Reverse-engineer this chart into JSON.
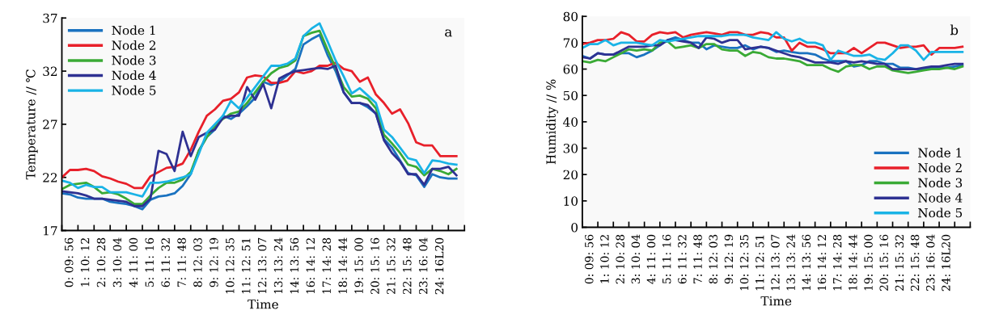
{
  "chart_data": [
    {
      "type": "line",
      "xlabel": "Time",
      "ylabel": "Temperature // ℃",
      "annotations": [
        "a"
      ],
      "legend": "top left",
      "ylim": [
        17,
        37
      ],
      "yticks": [
        17,
        22,
        27,
        32,
        37
      ],
      "categories": [
        null,
        "0: 09: 56",
        null,
        "1: 10: 12",
        null,
        "2: 10: 28",
        null,
        "3: 10: 04",
        null,
        "4: 11: 00",
        null,
        "5: 11: 16",
        null,
        "6: 11: 32",
        null,
        "7: 11: 48",
        null,
        "8: 12: 03",
        null,
        "9: 12: 19",
        null,
        "10: 12: 35",
        null,
        "11: 12: 51",
        null,
        "12: 13: 07",
        null,
        "13: 13: 24",
        null,
        "14: 13: 56",
        null,
        "16: 14: 12",
        null,
        "17: 14: 28",
        null,
        "18: 14: 44",
        null,
        "19: 15: 00",
        null,
        "20: 15: 16",
        null,
        "21: 15: 32",
        null,
        "22: 15: 48",
        null,
        "23: 16: 04",
        null,
        "24: 16L20",
        null,
        null
      ],
      "series": [
        {
          "name": "Node 1",
          "color": "#1a72c0",
          "values": [
            20.5,
            20.4,
            20.1,
            20.0,
            20.0,
            20.0,
            19.7,
            19.6,
            19.5,
            19.3,
            19.0,
            19.9,
            20.2,
            20.3,
            20.5,
            21.2,
            22.3,
            24.5,
            25.8,
            26.5,
            27.8,
            27.5,
            28.0,
            28.7,
            29.5,
            31.0,
            30.7,
            31.0,
            31.6,
            32.2,
            34.5,
            35.0,
            35.4,
            33.5,
            32.0,
            30.0,
            29.0,
            29.0,
            28.6,
            28.0,
            25.6,
            24.8,
            23.6,
            22.4,
            22.2,
            21.1,
            22.3,
            22.0,
            21.9,
            21.9
          ]
        },
        {
          "name": "Node 2",
          "color": "#e8202a",
          "values": [
            22.0,
            22.7,
            22.7,
            22.8,
            22.6,
            22.1,
            21.9,
            21.6,
            21.4,
            21.0,
            21.0,
            22.1,
            22.5,
            22.9,
            23.0,
            23.3,
            24.6,
            26.3,
            27.8,
            28.4,
            29.2,
            29.4,
            30.0,
            31.4,
            31.6,
            31.5,
            30.9,
            30.9,
            31.1,
            32.0,
            31.8,
            32.0,
            32.5,
            32.5,
            32.8,
            32.2,
            32.0,
            31.0,
            31.4,
            29.8,
            29.0,
            28.0,
            28.4,
            27.1,
            25.3,
            25.0,
            25.0,
            24.0,
            24.0,
            24.0
          ]
        },
        {
          "name": "Node 3",
          "color": "#3aaa35",
          "values": [
            20.9,
            21.3,
            21.4,
            21.5,
            21.1,
            20.5,
            20.6,
            20.4,
            20.0,
            19.5,
            19.5,
            20.3,
            21.0,
            21.5,
            21.5,
            21.8,
            22.5,
            24.5,
            25.8,
            26.8,
            27.5,
            28.0,
            28.2,
            29.0,
            30.0,
            31.0,
            31.8,
            32.3,
            32.5,
            33.0,
            35.3,
            35.6,
            35.8,
            34.0,
            32.3,
            30.5,
            29.6,
            29.7,
            29.4,
            28.5,
            26.0,
            25.2,
            24.3,
            23.2,
            23.0,
            22.2,
            22.8,
            22.6,
            22.3,
            22.8
          ]
        },
        {
          "name": "Node 4",
          "color": "#2e3192",
          "values": [
            20.7,
            20.6,
            20.5,
            20.3,
            20.0,
            20.0,
            19.9,
            19.8,
            19.7,
            19.3,
            19.3,
            20.0,
            24.5,
            24.2,
            22.6,
            26.3,
            24.0,
            25.8,
            26.2,
            26.5,
            27.6,
            27.8,
            27.8,
            30.5,
            29.3,
            30.8,
            28.5,
            31.3,
            31.7,
            32.0,
            32.1,
            32.2,
            32.3,
            32.2,
            32.5,
            30.0,
            29.0,
            29.0,
            28.8,
            28.0,
            25.5,
            24.3,
            23.5,
            22.3,
            22.3,
            21.3,
            22.8,
            22.8,
            23.0,
            22.2
          ]
        },
        {
          "name": "Node 5",
          "color": "#19b3e6",
          "values": [
            21.7,
            21.5,
            21.0,
            21.3,
            21.1,
            21.1,
            20.6,
            20.6,
            20.6,
            20.4,
            20.2,
            21.5,
            21.5,
            21.6,
            21.8,
            22.0,
            22.3,
            24.2,
            26.2,
            27.0,
            27.8,
            29.2,
            28.5,
            29.5,
            30.5,
            31.5,
            32.5,
            32.5,
            32.7,
            33.2,
            35.3,
            36.0,
            36.5,
            34.8,
            33.0,
            31.5,
            29.9,
            30.4,
            29.7,
            29.0,
            26.5,
            25.8,
            24.8,
            23.8,
            23.6,
            22.4,
            23.6,
            23.5,
            23.3,
            23.2
          ]
        }
      ]
    },
    {
      "type": "line",
      "xlabel": "Time",
      "ylabel": "Humidity // %",
      "annotations": [
        "b"
      ],
      "legend": "bottom right",
      "ylim": [
        0,
        80
      ],
      "yticks": [
        0,
        10,
        20,
        30,
        40,
        50,
        60,
        70,
        80
      ],
      "categories": [
        null,
        "0: 09: 56",
        null,
        "1: 10: 12",
        null,
        "2: 10: 28",
        null,
        "3: 10: 04",
        null,
        "4: 11: 00",
        null,
        "5: 11: 16",
        null,
        "6: 11: 32",
        null,
        "7: 11: 48",
        null,
        "8: 12: 03",
        null,
        "9: 12: 19",
        null,
        "10: 12: 35",
        null,
        "11: 12: 51",
        null,
        "12: 13: 07",
        null,
        "13: 13: 24",
        null,
        "14: 13: 56",
        null,
        "16: 14: 12",
        null,
        "17: 14: 28",
        null,
        "18: 14: 44",
        null,
        "19: 15: 00",
        null,
        "20: 15: 16",
        null,
        "21: 15: 32",
        null,
        "22: 15: 48",
        null,
        "23: 16: 04",
        null,
        "24: 16L20",
        null,
        null
      ],
      "series": [
        {
          "name": "Node 1",
          "color": "#1a72c0",
          "values": [
            65,
            64,
            66,
            65.5,
            65.5,
            66,
            66,
            64.5,
            65.5,
            67,
            69,
            71,
            72,
            71,
            70,
            70,
            67.5,
            69,
            68.5,
            68,
            68,
            69,
            67.5,
            68.5,
            68,
            66.5,
            67,
            66.5,
            66,
            66,
            65.5,
            64,
            63,
            63,
            63,
            61,
            61.5,
            63,
            63,
            62,
            62,
            60.5,
            60.5,
            60,
            60,
            60.5,
            60.5,
            60.5,
            61,
            61.5
          ]
        },
        {
          "name": "Node 2",
          "color": "#e8202a",
          "values": [
            69.5,
            70,
            71,
            71,
            71.5,
            74,
            73,
            70.5,
            70.5,
            73,
            74,
            73.5,
            74,
            72,
            73,
            73.5,
            74,
            73.5,
            73,
            74,
            74,
            73,
            73,
            74,
            73.5,
            72,
            72,
            67,
            70,
            68.5,
            68.5,
            67.5,
            66,
            66,
            66,
            68,
            66,
            68,
            70,
            70,
            69,
            68,
            68.5,
            68.5,
            69,
            65.5,
            68,
            68,
            68,
            68.5
          ]
        },
        {
          "name": "Node 3",
          "color": "#3aaa35",
          "values": [
            63,
            62.5,
            63.5,
            63,
            64.5,
            66,
            67.5,
            67,
            67.5,
            67,
            70,
            70.5,
            68,
            68.5,
            69,
            68,
            69.5,
            69.5,
            67.5,
            67,
            67,
            65,
            66.5,
            66,
            64.5,
            64,
            64,
            63.5,
            63,
            61.5,
            61.5,
            61.5,
            60,
            59,
            61,
            61.5,
            61.5,
            60,
            61,
            61,
            59.5,
            59,
            58.5,
            59,
            59.5,
            60,
            60,
            60.5,
            60,
            61
          ]
        },
        {
          "name": "Node 4",
          "color": "#2e3192",
          "values": [
            64.5,
            64,
            66,
            65.5,
            65.5,
            67,
            68.5,
            68.5,
            68.5,
            69,
            69,
            71,
            71,
            70.5,
            70,
            68,
            72,
            71.5,
            70,
            71,
            71,
            67.5,
            68,
            68.5,
            68,
            67,
            66,
            65,
            64.5,
            63.5,
            62.5,
            62.5,
            62.5,
            62,
            63,
            62.5,
            63,
            62.5,
            62,
            62,
            60,
            60,
            60,
            60,
            60.5,
            61,
            61,
            61.5,
            62,
            62
          ]
        },
        {
          "name": "Node 5",
          "color": "#19b3e6",
          "values": [
            68,
            69.5,
            69.5,
            71,
            69,
            70,
            70,
            70,
            69.5,
            69,
            71,
            70.5,
            71,
            71.5,
            72,
            72.5,
            72.5,
            72.5,
            72.5,
            73,
            73,
            73,
            72,
            71.5,
            71,
            74,
            71.5,
            70.5,
            71.5,
            70,
            70,
            69,
            63.5,
            67,
            66,
            65,
            65,
            65.5,
            64,
            63.5,
            66,
            69,
            69,
            67,
            63.5,
            66.5,
            66.5,
            66.5,
            66.5,
            66.5
          ]
        }
      ]
    }
  ]
}
